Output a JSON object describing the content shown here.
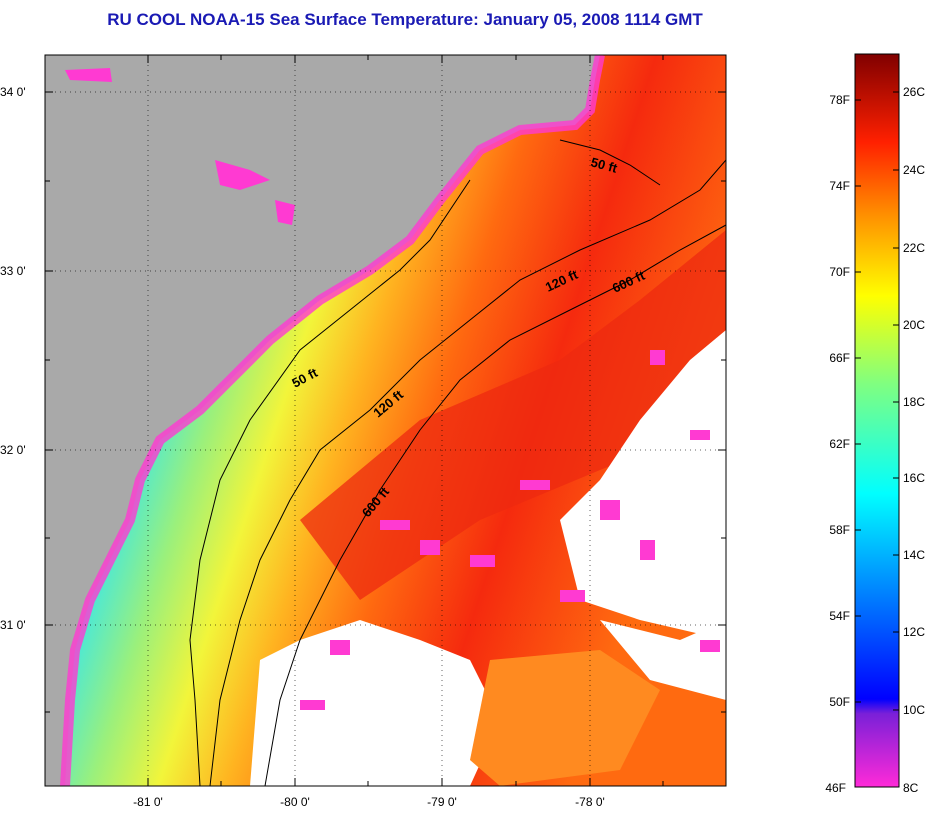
{
  "title": "RU COOL  NOAA-15  Sea Surface Temperature:  January 05, 2008 1114 GMT",
  "colors": {
    "land": "#a9a9a9",
    "cloud": "#ffffff",
    "title": "#1a1ab4"
  },
  "map": {
    "lat_labels": [
      "34 0'",
      "33 0'",
      "32 0'",
      "31 0'"
    ],
    "lon_labels": [
      "-81 0'",
      "-80 0'",
      "-79 0'",
      "-78 0'"
    ],
    "isobaths": [
      {
        "label": "50 ft",
        "instance": "north"
      },
      {
        "label": "50 ft",
        "instance": "south"
      },
      {
        "label": "120 ft",
        "instance": "north"
      },
      {
        "label": "120 ft",
        "instance": "south"
      },
      {
        "label": "600 ft",
        "instance": "north"
      },
      {
        "label": "600 ft",
        "instance": "south"
      }
    ]
  },
  "colorbar": {
    "fahrenheit_labels": [
      "78F",
      "74F",
      "70F",
      "66F",
      "62F",
      "58F",
      "54F",
      "50F",
      "46F"
    ],
    "celsius_labels": [
      "26C",
      "24C",
      "22C",
      "20C",
      "18C",
      "16C",
      "14C",
      "12C",
      "10C",
      "8C"
    ]
  }
}
